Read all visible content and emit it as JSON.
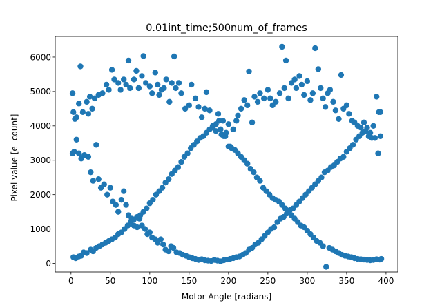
{
  "chart_data": {
    "type": "scatter",
    "title": "0.01int_time;500num_of_frames",
    "xlabel": "Motor Angle [radians]",
    "ylabel": "Pixel value [e- count]",
    "xlim": [
      -20,
      415
    ],
    "ylim": [
      -250,
      6600
    ],
    "xticks": [
      0,
      50,
      100,
      150,
      200,
      250,
      300,
      350,
      400
    ],
    "yticks": [
      0,
      1000,
      2000,
      3000,
      4000,
      5000,
      6000
    ],
    "grid": false,
    "legend": "none",
    "marker_color": "#1f77b4",
    "series": [
      {
        "points": [
          [
            2,
            4950
          ],
          [
            3,
            4400
          ],
          [
            5,
            4200
          ],
          [
            7,
            4250
          ],
          [
            10,
            4650
          ],
          [
            12,
            5730
          ],
          [
            15,
            4400
          ],
          [
            20,
            4700
          ],
          [
            22,
            4350
          ],
          [
            24,
            4850
          ],
          [
            27,
            4500
          ],
          [
            30,
            4800
          ],
          [
            35,
            4900
          ],
          [
            40,
            4950
          ],
          [
            45,
            5200
          ],
          [
            48,
            5050
          ],
          [
            52,
            5630
          ],
          [
            55,
            5350
          ],
          [
            60,
            5250
          ],
          [
            63,
            5050
          ],
          [
            67,
            5350
          ],
          [
            70,
            5200
          ],
          [
            73,
            5900
          ],
          [
            75,
            5100
          ],
          [
            80,
            5350
          ],
          [
            83,
            5600
          ],
          [
            86,
            5100
          ],
          [
            90,
            5450
          ],
          [
            92,
            6030
          ],
          [
            95,
            5250
          ],
          [
            100,
            5150
          ],
          [
            103,
            4950
          ],
          [
            107,
            5550
          ],
          [
            110,
            5200
          ],
          [
            112,
            4900
          ],
          [
            115,
            5050
          ],
          [
            118,
            5100
          ],
          [
            121,
            5350
          ],
          [
            125,
            4700
          ],
          [
            128,
            5250
          ],
          [
            131,
            6020
          ],
          [
            133,
            5100
          ],
          [
            137,
            5250
          ],
          [
            140,
            4950
          ],
          [
            145,
            4500
          ],
          [
            150,
            4600
          ],
          [
            153,
            5200
          ],
          [
            158,
            4800
          ],
          [
            162,
            4550
          ],
          [
            166,
            4250
          ],
          [
            170,
            4500
          ],
          [
            172,
            4980
          ],
          [
            176,
            4450
          ],
          [
            180,
            4000
          ],
          [
            184,
            3850
          ],
          [
            187,
            4350
          ],
          [
            190,
            3900
          ],
          [
            193,
            4150
          ],
          [
            196,
            3700
          ],
          [
            200,
            4050
          ],
          [
            202,
            3400
          ],
          [
            206,
            3900
          ],
          [
            210,
            4150
          ],
          [
            212,
            4300
          ],
          [
            216,
            4500
          ],
          [
            220,
            4750
          ],
          [
            224,
            4600
          ],
          [
            226,
            5580
          ],
          [
            230,
            4100
          ],
          [
            233,
            4850
          ],
          [
            237,
            4700
          ],
          [
            240,
            4950
          ],
          [
            245,
            4800
          ],
          [
            250,
            5050
          ],
          [
            253,
            4800
          ],
          [
            256,
            4600
          ],
          [
            260,
            4700
          ],
          [
            265,
            4950
          ],
          [
            268,
            6300
          ],
          [
            271,
            5100
          ],
          [
            273,
            5900
          ],
          [
            276,
            4800
          ],
          [
            280,
            5250
          ],
          [
            284,
            5350
          ],
          [
            286,
            5100
          ],
          [
            290,
            5450
          ],
          [
            293,
            5200
          ],
          [
            296,
            4900
          ],
          [
            300,
            5300
          ],
          [
            304,
            4750
          ],
          [
            307,
            4950
          ],
          [
            310,
            6260
          ],
          [
            314,
            5650
          ],
          [
            317,
            5100
          ],
          [
            320,
            4800
          ],
          [
            323,
            4550
          ],
          [
            326,
            4950
          ],
          [
            329,
            5050
          ],
          [
            333,
            4700
          ],
          [
            336,
            4450
          ],
          [
            340,
            4200
          ],
          [
            343,
            5480
          ],
          [
            346,
            4500
          ],
          [
            350,
            4600
          ],
          [
            353,
            4350
          ],
          [
            357,
            4150
          ],
          [
            360,
            4100
          ],
          [
            364,
            4000
          ],
          [
            368,
            3950
          ],
          [
            372,
            4100
          ],
          [
            376,
            3950
          ],
          [
            380,
            3800
          ],
          [
            384,
            4000
          ],
          [
            388,
            4850
          ],
          [
            391,
            4400
          ],
          [
            393,
            4400
          ]
        ]
      },
      {
        "points": [
          [
            2,
            3200
          ],
          [
            4,
            3250
          ],
          [
            7,
            3600
          ],
          [
            10,
            3200
          ],
          [
            13,
            3050
          ],
          [
            17,
            3150
          ],
          [
            22,
            3100
          ],
          [
            25,
            2650
          ],
          [
            28,
            2400
          ],
          [
            32,
            3450
          ],
          [
            35,
            2450
          ],
          [
            38,
            2200
          ],
          [
            42,
            2300
          ],
          [
            46,
            2000
          ],
          [
            50,
            2200
          ],
          [
            53,
            1800
          ],
          [
            57,
            1700
          ],
          [
            60,
            1500
          ],
          [
            64,
            1850
          ],
          [
            67,
            2100
          ],
          [
            70,
            1700
          ],
          [
            73,
            1400
          ],
          [
            77,
            1300
          ],
          [
            80,
            1100
          ],
          [
            84,
            1050
          ],
          [
            87,
            1300
          ],
          [
            90,
            1100
          ],
          [
            94,
            1000
          ],
          [
            97,
            850
          ],
          [
            100,
            900
          ],
          [
            103,
            750
          ],
          [
            107,
            700
          ],
          [
            110,
            600
          ],
          [
            114,
            700
          ],
          [
            117,
            550
          ],
          [
            120,
            400
          ],
          [
            124,
            350
          ],
          [
            127,
            500
          ],
          [
            130,
            450
          ],
          [
            134,
            320
          ],
          [
            138,
            300
          ],
          [
            142,
            250
          ],
          [
            146,
            220
          ],
          [
            150,
            180
          ],
          [
            154,
            150
          ],
          [
            158,
            130
          ],
          [
            162,
            100
          ],
          [
            166,
            120
          ],
          [
            170,
            90
          ],
          [
            174,
            80
          ],
          [
            178,
            70
          ],
          [
            182,
            100
          ],
          [
            186,
            80
          ],
          [
            190,
            60
          ],
          [
            194,
            90
          ],
          [
            198,
            110
          ],
          [
            202,
            130
          ],
          [
            206,
            150
          ],
          [
            210,
            180
          ],
          [
            214,
            200
          ],
          [
            218,
            250
          ],
          [
            222,
            300
          ],
          [
            226,
            400
          ],
          [
            230,
            450
          ],
          [
            234,
            550
          ],
          [
            238,
            600
          ],
          [
            242,
            700
          ],
          [
            246,
            800
          ],
          [
            250,
            900
          ],
          [
            254,
            1000
          ],
          [
            258,
            1050
          ],
          [
            262,
            1200
          ],
          [
            266,
            1300
          ],
          [
            270,
            1350
          ],
          [
            274,
            1450
          ],
          [
            278,
            1550
          ],
          [
            282,
            1600
          ],
          [
            286,
            1700
          ],
          [
            290,
            1800
          ],
          [
            294,
            1900
          ],
          [
            298,
            2000
          ],
          [
            302,
            2100
          ],
          [
            306,
            2200
          ],
          [
            310,
            2300
          ],
          [
            314,
            2400
          ],
          [
            318,
            2500
          ],
          [
            322,
            2650
          ],
          [
            326,
            2700
          ],
          [
            330,
            2800
          ],
          [
            334,
            2850
          ],
          [
            338,
            2950
          ],
          [
            342,
            3050
          ],
          [
            346,
            3100
          ],
          [
            350,
            3250
          ],
          [
            354,
            3350
          ],
          [
            358,
            3450
          ],
          [
            362,
            3600
          ],
          [
            366,
            3700
          ],
          [
            370,
            3800
          ],
          [
            374,
            3850
          ],
          [
            378,
            3700
          ],
          [
            382,
            3650
          ],
          [
            386,
            3650
          ],
          [
            390,
            3200
          ],
          [
            393,
            3700
          ]
        ]
      },
      {
        "points": [
          [
            3,
            180
          ],
          [
            6,
            150
          ],
          [
            10,
            200
          ],
          [
            13,
            220
          ],
          [
            16,
            320
          ],
          [
            20,
            300
          ],
          [
            25,
            400
          ],
          [
            28,
            350
          ],
          [
            32,
            450
          ],
          [
            36,
            500
          ],
          [
            40,
            550
          ],
          [
            44,
            600
          ],
          [
            48,
            650
          ],
          [
            52,
            700
          ],
          [
            56,
            750
          ],
          [
            60,
            850
          ],
          [
            64,
            900
          ],
          [
            68,
            1000
          ],
          [
            72,
            1100
          ],
          [
            76,
            1200
          ],
          [
            80,
            1280
          ],
          [
            84,
            1350
          ],
          [
            88,
            1400
          ],
          [
            92,
            1500
          ],
          [
            96,
            1600
          ],
          [
            100,
            1750
          ],
          [
            104,
            1850
          ],
          [
            108,
            2000
          ],
          [
            112,
            2100
          ],
          [
            116,
            2200
          ],
          [
            120,
            2350
          ],
          [
            124,
            2450
          ],
          [
            128,
            2600
          ],
          [
            132,
            2700
          ],
          [
            136,
            2800
          ],
          [
            140,
            2950
          ],
          [
            144,
            3100
          ],
          [
            148,
            3200
          ],
          [
            152,
            3350
          ],
          [
            156,
            3450
          ],
          [
            160,
            3550
          ],
          [
            164,
            3650
          ],
          [
            168,
            3700
          ],
          [
            172,
            3800
          ],
          [
            176,
            3900
          ],
          [
            180,
            3950
          ],
          [
            184,
            4050
          ],
          [
            188,
            4150
          ],
          [
            191,
            3750
          ],
          [
            194,
            3700
          ],
          [
            197,
            3800
          ]
        ]
      },
      {
        "points": [
          [
            200,
            3400
          ],
          [
            204,
            3350
          ],
          [
            208,
            3300
          ],
          [
            212,
            3200
          ],
          [
            216,
            3100
          ],
          [
            220,
            3000
          ],
          [
            224,
            2900
          ],
          [
            228,
            2750
          ],
          [
            232,
            2650
          ],
          [
            236,
            2500
          ],
          [
            240,
            2400
          ],
          [
            244,
            2200
          ],
          [
            248,
            2100
          ],
          [
            252,
            2000
          ],
          [
            256,
            1900
          ],
          [
            260,
            1850
          ],
          [
            264,
            1800
          ],
          [
            268,
            1700
          ],
          [
            272,
            1600
          ],
          [
            276,
            1500
          ],
          [
            280,
            1400
          ],
          [
            284,
            1300
          ],
          [
            288,
            1200
          ],
          [
            292,
            1100
          ],
          [
            296,
            1050
          ],
          [
            300,
            950
          ],
          [
            304,
            850
          ],
          [
            308,
            750
          ],
          [
            312,
            650
          ],
          [
            316,
            600
          ],
          [
            320,
            500
          ],
          [
            324,
            -100
          ],
          [
            328,
            450
          ],
          [
            332,
            400
          ],
          [
            336,
            350
          ],
          [
            340,
            300
          ],
          [
            344,
            250
          ],
          [
            348,
            220
          ],
          [
            352,
            200
          ],
          [
            356,
            180
          ],
          [
            360,
            150
          ],
          [
            364,
            130
          ],
          [
            368,
            120
          ],
          [
            372,
            110
          ],
          [
            376,
            100
          ],
          [
            380,
            90
          ],
          [
            384,
            100
          ],
          [
            388,
            120
          ],
          [
            392,
            110
          ],
          [
            394,
            130
          ]
        ]
      }
    ]
  }
}
